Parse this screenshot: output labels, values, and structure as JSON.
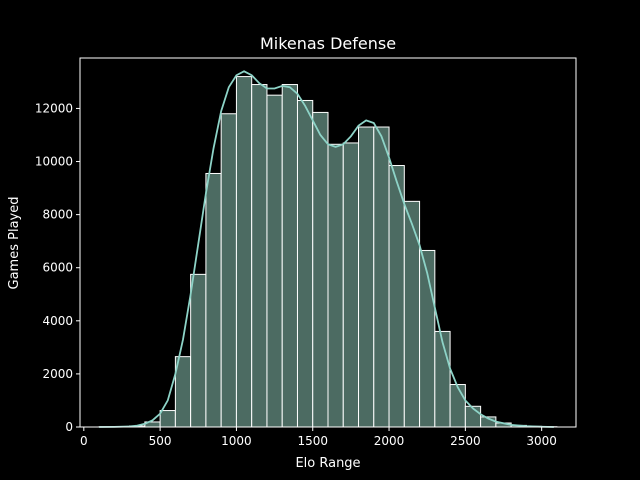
{
  "chart_data": {
    "type": "bar",
    "title": "Mikenas Defense",
    "xlabel": "Elo Range",
    "ylabel": "Games Played",
    "xlim": [
      -25,
      3225
    ],
    "ylim": [
      0,
      13900
    ],
    "xticks": [
      0,
      500,
      1000,
      1500,
      2000,
      2500,
      3000
    ],
    "yticks": [
      0,
      2000,
      4000,
      6000,
      8000,
      10000,
      12000
    ],
    "grid": false,
    "bins": [
      {
        "x0": 100,
        "x1": 200,
        "value": 8
      },
      {
        "x0": 200,
        "x1": 300,
        "value": 10
      },
      {
        "x0": 300,
        "x1": 400,
        "value": 40
      },
      {
        "x0": 400,
        "x1": 500,
        "value": 190
      },
      {
        "x0": 500,
        "x1": 600,
        "value": 620
      },
      {
        "x0": 600,
        "x1": 700,
        "value": 2650
      },
      {
        "x0": 700,
        "x1": 800,
        "value": 5750
      },
      {
        "x0": 800,
        "x1": 900,
        "value": 9550
      },
      {
        "x0": 900,
        "x1": 1000,
        "value": 11800
      },
      {
        "x0": 1000,
        "x1": 1100,
        "value": 13200
      },
      {
        "x0": 1100,
        "x1": 1200,
        "value": 12900
      },
      {
        "x0": 1200,
        "x1": 1300,
        "value": 12500
      },
      {
        "x0": 1300,
        "x1": 1400,
        "value": 12900
      },
      {
        "x0": 1400,
        "x1": 1500,
        "value": 12300
      },
      {
        "x0": 1500,
        "x1": 1600,
        "value": 11850
      },
      {
        "x0": 1600,
        "x1": 1700,
        "value": 10650
      },
      {
        "x0": 1700,
        "x1": 1800,
        "value": 10700
      },
      {
        "x0": 1800,
        "x1": 1900,
        "value": 11300
      },
      {
        "x0": 1900,
        "x1": 2000,
        "value": 11300
      },
      {
        "x0": 2000,
        "x1": 2100,
        "value": 9850
      },
      {
        "x0": 2100,
        "x1": 2200,
        "value": 8500
      },
      {
        "x0": 2200,
        "x1": 2300,
        "value": 6650
      },
      {
        "x0": 2300,
        "x1": 2400,
        "value": 3600
      },
      {
        "x0": 2400,
        "x1": 2500,
        "value": 1600
      },
      {
        "x0": 2500,
        "x1": 2600,
        "value": 780
      },
      {
        "x0": 2600,
        "x1": 2700,
        "value": 380
      },
      {
        "x0": 2700,
        "x1": 2800,
        "value": 150
      },
      {
        "x0": 2800,
        "x1": 2900,
        "value": 60
      },
      {
        "x0": 2900,
        "x1": 3000,
        "value": 25
      },
      {
        "x0": 3000,
        "x1": 3100,
        "value": 10
      }
    ],
    "kde": {
      "x": [
        100,
        200,
        300,
        350,
        400,
        450,
        500,
        550,
        600,
        650,
        700,
        750,
        800,
        850,
        900,
        950,
        1000,
        1050,
        1100,
        1150,
        1200,
        1250,
        1300,
        1350,
        1400,
        1450,
        1500,
        1550,
        1600,
        1650,
        1700,
        1750,
        1800,
        1850,
        1900,
        1950,
        2000,
        2050,
        2100,
        2150,
        2200,
        2250,
        2300,
        2350,
        2400,
        2450,
        2500,
        2550,
        2600,
        2650,
        2700,
        2800,
        2900,
        3000,
        3080
      ],
      "y": [
        0,
        5,
        20,
        50,
        120,
        250,
        500,
        1000,
        2000,
        3300,
        5000,
        6900,
        8800,
        10500,
        11900,
        12800,
        13250,
        13400,
        13250,
        12950,
        12750,
        12750,
        12850,
        12800,
        12550,
        12100,
        11550,
        11000,
        10650,
        10550,
        10650,
        10950,
        11350,
        11550,
        11450,
        10950,
        10150,
        9250,
        8400,
        7650,
        6850,
        5800,
        4500,
        3200,
        2200,
        1500,
        1000,
        700,
        480,
        320,
        200,
        80,
        30,
        10,
        0
      ]
    },
    "colors": {
      "background": "#000000",
      "bar_fill": "#4c6b62",
      "bar_edge": "#ffffff",
      "kde_line": "#8dd3c7",
      "axis": "#ffffff",
      "text": "#ffffff"
    }
  }
}
